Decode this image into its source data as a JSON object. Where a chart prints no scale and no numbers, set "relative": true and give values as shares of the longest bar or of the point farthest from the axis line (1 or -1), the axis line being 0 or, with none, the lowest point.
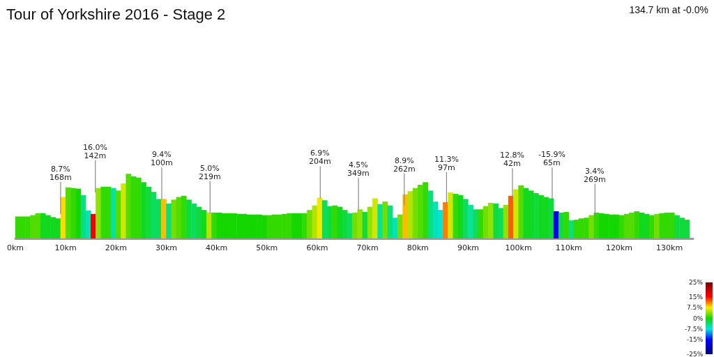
{
  "chart_data": {
    "type": "bar",
    "title": "Tour of Yorkshire 2016 - Stage 2",
    "relative": true,
    "x": [
      0.5,
      1.5,
      2.5,
      3.5,
      4.5,
      5.5,
      6.5,
      7.5,
      8.5,
      9.5,
      10.5,
      11.5,
      12.5,
      13.5,
      14.5,
      15.5,
      16.5,
      17.5,
      18.5,
      19.5,
      20.5,
      21.5,
      22.5,
      23.5,
      24.5,
      25.5,
      26.5,
      27.5,
      28.5,
      29.5,
      30.5,
      31.5,
      32.5,
      33.5,
      34.5,
      35.5,
      36.5,
      37.5,
      38.5,
      39.5,
      40.5,
      41.5,
      42.5,
      43.5,
      44.5,
      45.5,
      46.5,
      47.5,
      48.5,
      49.5,
      50.5,
      51.5,
      52.5,
      53.5,
      54.5,
      55.5,
      56.5,
      57.5,
      58.5,
      59.5,
      60.5,
      61.5,
      62.5,
      63.5,
      64.5,
      65.5,
      66.5,
      67.5,
      68.5,
      69.5,
      70.5,
      71.5,
      72.5,
      73.5,
      74.5,
      75.5,
      76.5,
      77.5,
      78.5,
      79.5,
      80.5,
      81.5,
      82.5,
      83.5,
      84.5,
      85.5,
      86.5,
      87.5,
      88.5,
      89.5,
      90.5,
      91.5,
      92.5,
      93.5,
      94.5,
      95.5,
      96.5,
      97.5,
      98.5,
      99.5,
      100.5,
      101.5,
      102.5,
      103.5,
      104.5,
      105.5,
      106.5,
      107.5,
      108.5,
      109.5,
      110.5,
      111.5,
      112.5,
      113.5,
      114.5,
      115.5,
      116.5,
      117.5,
      118.5,
      119.5,
      120.5,
      121.5,
      122.5,
      123.5,
      124.5,
      125.5,
      126.5,
      127.5,
      128.5,
      129.5,
      130.5,
      131.5,
      132.5,
      133.5
    ],
    "values": [
      0.34,
      0.34,
      0.34,
      0.36,
      0.39,
      0.39,
      0.36,
      0.33,
      0.31,
      0.64,
      0.79,
      0.78,
      0.77,
      0.67,
      0.43,
      0.38,
      0.78,
      0.8,
      0.8,
      0.78,
      0.74,
      0.85,
      1,
      0.96,
      0.94,
      0.87,
      0.8,
      0.72,
      0.61,
      0.61,
      0.54,
      0.6,
      0.64,
      0.66,
      0.6,
      0.54,
      0.49,
      0.44,
      0.4,
      0.4,
      0.4,
      0.39,
      0.39,
      0.39,
      0.38,
      0.38,
      0.37,
      0.37,
      0.37,
      0.36,
      0.36,
      0.37,
      0.37,
      0.38,
      0.39,
      0.39,
      0.39,
      0.39,
      0.44,
      0.51,
      0.63,
      0.59,
      0.5,
      0.51,
      0.49,
      0.44,
      0.39,
      0.4,
      0.45,
      0.41,
      0.49,
      0.62,
      0.53,
      0.57,
      0.51,
      0.32,
      0.37,
      0.68,
      0.73,
      0.78,
      0.83,
      0.87,
      0.74,
      0.57,
      0.44,
      0.56,
      0.71,
      0.69,
      0.67,
      0.61,
      0.52,
      0.45,
      0.45,
      0.5,
      0.55,
      0.54,
      0.47,
      0.52,
      0.66,
      0.76,
      0.82,
      0.78,
      0.74,
      0.7,
      0.67,
      0.64,
      0.62,
      0.42,
      0.4,
      0.41,
      0.28,
      0.29,
      0.31,
      0.32,
      0.36,
      0.4,
      0.39,
      0.38,
      0.37,
      0.37,
      0.36,
      0.38,
      0.4,
      0.42,
      0.4,
      0.38,
      0.36,
      0.38,
      0.39,
      0.4,
      0.4,
      0.36,
      0.32,
      0.29
    ],
    "cvalues": [
      1,
      1,
      1,
      2,
      2,
      -1,
      -1,
      -1,
      -1,
      8,
      2,
      1,
      0,
      -4,
      -6,
      16,
      4,
      1,
      1,
      -5,
      2,
      6,
      2,
      1,
      1,
      -1,
      -2,
      -3,
      -3,
      9,
      -4,
      3,
      2,
      1,
      -2,
      -3,
      -2,
      -1,
      5,
      1,
      0,
      0,
      0,
      0,
      0,
      0,
      0,
      0,
      0,
      0,
      1,
      1,
      1,
      1,
      1,
      0,
      0,
      1,
      3,
      5,
      7,
      -3,
      -2,
      1,
      -1,
      -2,
      -3,
      3,
      4,
      -2,
      4,
      6,
      -5,
      3,
      -4,
      -6,
      3,
      9,
      5,
      3,
      2,
      1,
      -4,
      -6,
      -7,
      11,
      6,
      1,
      -1,
      -3,
      -5,
      -3,
      1,
      3,
      4,
      -2,
      -3,
      4,
      12,
      6,
      2,
      -1,
      -1,
      -2,
      -1,
      -1,
      -2,
      -15,
      -2,
      1,
      -4,
      1,
      1,
      1,
      3,
      1,
      0,
      0,
      0,
      0,
      1,
      2,
      2,
      1,
      -1,
      -1,
      1,
      3,
      1,
      1,
      1,
      -2,
      -2,
      -2
    ],
    "clim": [
      -25,
      25
    ],
    "cticks": [
      {
        "value": 25,
        "label": "25%"
      },
      {
        "value": 15,
        "label": "15%"
      },
      {
        "value": 7.5,
        "label": "7.5%"
      },
      {
        "value": 0,
        "label": "0%"
      },
      {
        "value": -7.5,
        "label": "-7.5%"
      },
      {
        "value": -15,
        "label": "-15%"
      },
      {
        "value": -25,
        "label": "-25%"
      }
    ],
    "xlim": [
      0,
      134.7
    ],
    "xticks": [
      {
        "value": 0,
        "label": "0km"
      },
      {
        "value": 10,
        "label": "10km"
      },
      {
        "value": 20,
        "label": "20km"
      },
      {
        "value": 30,
        "label": "30km"
      },
      {
        "value": 40,
        "label": "40km"
      },
      {
        "value": 50,
        "label": "50km"
      },
      {
        "value": 60,
        "label": "60km"
      },
      {
        "value": 70,
        "label": "70km"
      },
      {
        "value": 80,
        "label": "80km"
      },
      {
        "value": 90,
        "label": "90km"
      },
      {
        "value": 100,
        "label": "100km"
      },
      {
        "value": 110,
        "label": "110km"
      },
      {
        "value": 120,
        "label": "120km"
      },
      {
        "value": 130,
        "label": "130km"
      }
    ],
    "tick_labels": "x",
    "annotations": [
      "134.7 km at -0.0%",
      {
        "text": "8.7%\n168m",
        "x": 9,
        "y": 0.38
      },
      {
        "text": "16.0%\n142m",
        "x": 15.9,
        "y": 0.71
      },
      {
        "text": "9.4%\n100m",
        "x": 29.1,
        "y": 0.6
      },
      {
        "text": "5.0%\n219m",
        "x": 38.7,
        "y": 0.39
      },
      {
        "text": "6.9%\n204m",
        "x": 60.6,
        "y": 0.62
      },
      {
        "text": "4.5%\n349m",
        "x": 68.2,
        "y": 0.44
      },
      {
        "text": "8.9%\n262m",
        "x": 77.3,
        "y": 0.51
      },
      {
        "text": "11.3%\n97m",
        "x": 85.7,
        "y": 0.53
      },
      {
        "text": "12.8%\n42m",
        "x": 98.8,
        "y": 0.59
      },
      {
        "text": "-15.9%\n65m",
        "x": 106.7,
        "y": 0.6
      },
      {
        "text": "3.4%\n269m",
        "x": 115.2,
        "y": 0.35
      }
    ]
  }
}
